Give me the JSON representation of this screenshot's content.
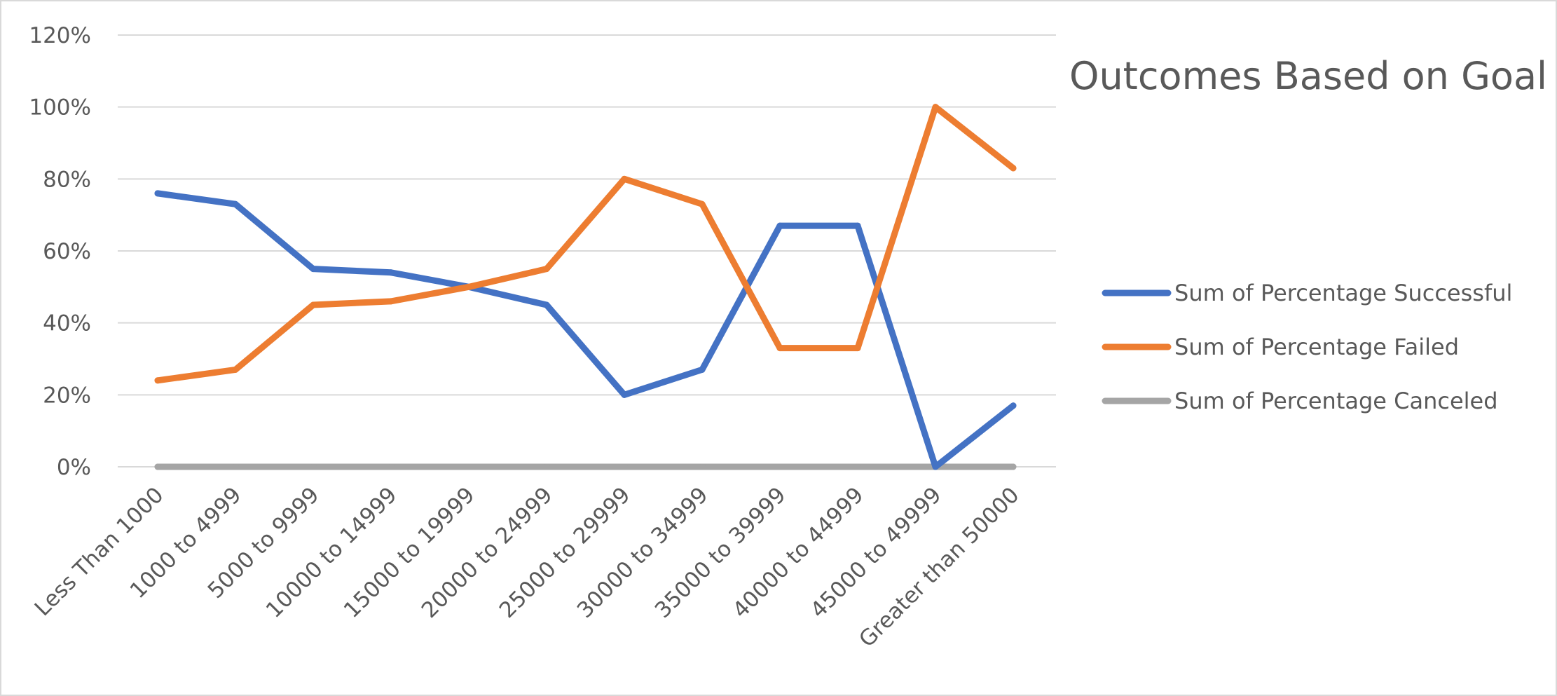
{
  "chart_data": {
    "type": "line",
    "title": "Outcomes Based on Goal",
    "categories": [
      "Less Than 1000",
      "1000 to 4999",
      "5000 to 9999",
      "10000 to 14999",
      "15000 to 19999",
      "20000 to 24999",
      "25000 to 29999",
      "30000 to 34999",
      "35000 to 39999",
      "40000 to 44999",
      "45000 to 49999",
      "Greater than 50000"
    ],
    "y_ticks": [
      "0%",
      "20%",
      "40%",
      "60%",
      "80%",
      "100%",
      "120%"
    ],
    "ylim": [
      0,
      1.2
    ],
    "grid": true,
    "legend_position": "right",
    "series": [
      {
        "name": "Sum of Percentage Successful",
        "color": "#4472c4",
        "values": [
          0.76,
          0.73,
          0.55,
          0.54,
          0.5,
          0.45,
          0.2,
          0.27,
          0.67,
          0.67,
          0.0,
          0.17
        ]
      },
      {
        "name": "Sum of Percentage Failed",
        "color": "#ed7d31",
        "values": [
          0.24,
          0.27,
          0.45,
          0.46,
          0.5,
          0.55,
          0.8,
          0.73,
          0.33,
          0.33,
          1.0,
          0.83
        ]
      },
      {
        "name": "Sum of Percentage Canceled",
        "color": "#a5a5a5",
        "values": [
          0,
          0,
          0,
          0,
          0,
          0,
          0,
          0,
          0,
          0,
          0,
          0
        ]
      }
    ]
  }
}
